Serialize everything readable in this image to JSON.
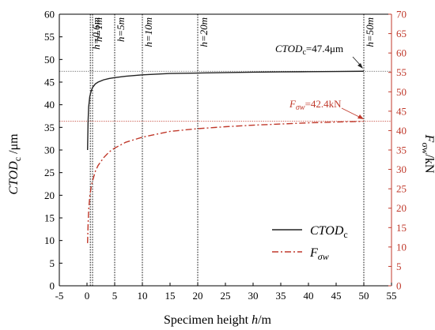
{
  "chart_data": {
    "type": "line",
    "title": "",
    "xlabel": {
      "main": "Specimen height ",
      "var": "h",
      "unit": "/m"
    },
    "ylabel_left": {
      "var": "CTOD",
      "sub": "c",
      "unit": " /μm"
    },
    "ylabel_right": {
      "var": "F",
      "sub": "σw",
      "unit": "/kN"
    },
    "xlim": [
      -5,
      55
    ],
    "ylim_left": [
      0,
      60
    ],
    "ylim_right": [
      0,
      70
    ],
    "x_ticks": [
      "-5",
      "0",
      "5",
      "10",
      "15",
      "20",
      "25",
      "30",
      "35",
      "40",
      "45",
      "50",
      "55"
    ],
    "y_left_ticks": [
      "0",
      "5",
      "10",
      "15",
      "20",
      "25",
      "30",
      "35",
      "40",
      "45",
      "50",
      "55",
      "60"
    ],
    "y_right_ticks": [
      "0",
      "5",
      "10",
      "15",
      "20",
      "25",
      "30",
      "35",
      "40",
      "45",
      "50",
      "55",
      "60",
      "65",
      "70"
    ],
    "grid": false,
    "legend_position": "bottom-right",
    "colors": {
      "ctod": "#222222",
      "force": "#c0392b",
      "axis_right": "#c0392b"
    },
    "vertical_markers": [
      {
        "x": 0.6,
        "label": "h=0.6m"
      },
      {
        "x": 1,
        "label": "h=1m"
      },
      {
        "x": 5,
        "label": "h=5m"
      },
      {
        "x": 10,
        "label": "h=10m"
      },
      {
        "x": 20,
        "label": "h=20m"
      },
      {
        "x": 50,
        "label": "h=50m"
      }
    ],
    "series": [
      {
        "name": "CTODc",
        "axis": "left",
        "x": [
          0.1,
          0.2,
          0.3,
          0.5,
          0.75,
          1,
          1.5,
          2,
          3,
          4,
          5,
          7,
          10,
          15,
          20,
          25,
          30,
          35,
          40,
          45,
          50
        ],
        "y": [
          30.0,
          36.5,
          39.5,
          41.8,
          43.0,
          43.8,
          44.6,
          45.0,
          45.5,
          45.8,
          46.0,
          46.3,
          46.6,
          46.9,
          47.0,
          47.1,
          47.2,
          47.25,
          47.3,
          47.35,
          47.4
        ]
      },
      {
        "name": "Fσw",
        "axis": "right",
        "x": [
          0.1,
          0.2,
          0.3,
          0.5,
          0.75,
          1,
          1.5,
          2,
          3,
          4,
          5,
          7,
          10,
          15,
          20,
          25,
          30,
          35,
          40,
          45,
          50
        ],
        "y": [
          11.0,
          16.0,
          19.5,
          23.0,
          25.5,
          27.0,
          29.5,
          31.0,
          33.0,
          34.5,
          35.5,
          37.0,
          38.3,
          39.8,
          40.5,
          41.0,
          41.4,
          41.7,
          42.0,
          42.2,
          42.4
        ]
      }
    ],
    "annotations": [
      {
        "var": "CTOD",
        "sub": "c",
        "value": "=47.4μm",
        "series": "CTODc"
      },
      {
        "var": "F",
        "sub": "σw",
        "value": "=42.4kN",
        "series": "Fσw"
      }
    ],
    "legend": [
      {
        "var": "CTOD",
        "sub": "c",
        "series": "CTODc"
      },
      {
        "var": "F",
        "sub": "σw",
        "series": "Fσw"
      }
    ]
  }
}
